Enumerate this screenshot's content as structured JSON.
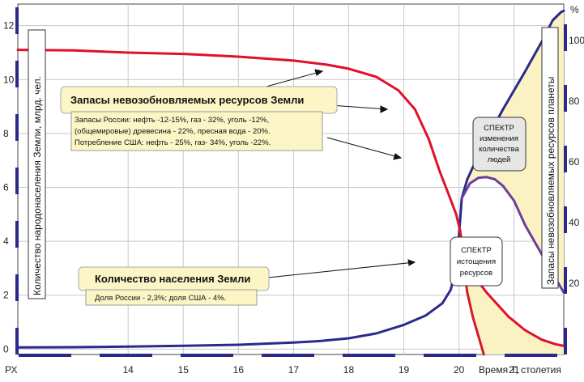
{
  "chart_data": {
    "type": "line",
    "x_axis": {
      "title": "Время Т, столетия",
      "origin_label": "РХ",
      "ticks": [
        14,
        15,
        16,
        17,
        18,
        19,
        20,
        21
      ],
      "range": [
        12.0,
        21.9
      ]
    },
    "y_left": {
      "title": "Количество народонаселения Земли, млрд. чел.",
      "ticks": [
        0,
        2,
        4,
        6,
        8,
        10,
        12
      ],
      "range": [
        -0.2,
        12.8
      ]
    },
    "y_right": {
      "title": "Запасы невозобновляемых ресурсов планеты",
      "unit": "%",
      "ticks": [
        20,
        40,
        60,
        80,
        100
      ],
      "range": [
        -3.5,
        112
      ]
    },
    "series": [
      {
        "name": "Количество населения Земли",
        "axis": "left",
        "color": "#2b2a8c",
        "points": [
          [
            12.0,
            0.06
          ],
          [
            13.0,
            0.07
          ],
          [
            14.0,
            0.09
          ],
          [
            15.0,
            0.12
          ],
          [
            16.0,
            0.16
          ],
          [
            17.0,
            0.24
          ],
          [
            17.5,
            0.3
          ],
          [
            18.0,
            0.4
          ],
          [
            18.5,
            0.58
          ],
          [
            19.0,
            0.9
          ],
          [
            19.4,
            1.25
          ],
          [
            19.7,
            1.7
          ],
          [
            19.85,
            2.2
          ],
          [
            19.95,
            3.0
          ],
          [
            20.0,
            4.2
          ],
          [
            20.05,
            5.6
          ],
          [
            20.15,
            6.3
          ],
          [
            20.4,
            7.4
          ],
          [
            20.8,
            8.9
          ],
          [
            21.2,
            10.3
          ],
          [
            21.5,
            11.4
          ],
          [
            21.7,
            12.2
          ],
          [
            21.85,
            12.5
          ],
          [
            21.9,
            12.55
          ]
        ]
      },
      {
        "name": "Запасы невозобновляемых ресурсов Земли",
        "axis": "left",
        "color": "#e0102a",
        "points": [
          [
            12.0,
            11.1
          ],
          [
            13.0,
            11.08
          ],
          [
            14.0,
            11.0
          ],
          [
            15.0,
            10.95
          ],
          [
            16.0,
            10.85
          ],
          [
            17.0,
            10.7
          ],
          [
            17.6,
            10.55
          ],
          [
            18.0,
            10.4
          ],
          [
            18.5,
            10.1
          ],
          [
            18.9,
            9.6
          ],
          [
            19.2,
            8.9
          ],
          [
            19.45,
            7.8
          ],
          [
            19.65,
            6.6
          ],
          [
            19.82,
            5.7
          ],
          [
            19.95,
            5.0
          ],
          [
            20.02,
            4.4
          ],
          [
            20.1,
            3.3
          ],
          [
            20.2,
            2.9
          ],
          [
            20.5,
            2.1
          ],
          [
            20.9,
            1.2
          ],
          [
            21.2,
            0.7
          ],
          [
            21.5,
            0.35
          ],
          [
            21.75,
            0.18
          ],
          [
            21.9,
            0.12
          ]
        ]
      },
      {
        "name": "СПЕКТР изменения количества людей (нижняя ветвь)",
        "axis": "left",
        "color": "#6a3f9e",
        "points": [
          [
            20.05,
            5.6
          ],
          [
            20.2,
            6.15
          ],
          [
            20.35,
            6.35
          ],
          [
            20.5,
            6.38
          ],
          [
            20.65,
            6.3
          ],
          [
            20.8,
            6.05
          ],
          [
            21.0,
            5.5
          ],
          [
            21.2,
            4.6
          ],
          [
            21.45,
            3.7
          ],
          [
            21.7,
            2.8
          ],
          [
            21.9,
            2.1
          ]
        ]
      },
      {
        "name": "СПЕКТР истощения ресурсов (нижняя ветвь)",
        "axis": "left",
        "color": "#d41a2a",
        "points": [
          [
            20.02,
            4.4
          ],
          [
            20.08,
            3.2
          ],
          [
            20.15,
            2.1
          ],
          [
            20.25,
            1.2
          ],
          [
            20.35,
            0.5
          ],
          [
            20.45,
            -0.2
          ]
        ]
      }
    ],
    "spectra": [
      {
        "label": "СПЕКТР изменения количества людей",
        "upper": "Количество населения Земли",
        "lower": "СПЕКТР изменения количества людей (нижняя ветвь)",
        "color": "#fbf2c4"
      },
      {
        "label": "СПЕКТР истощения ресурсов",
        "upper": "Запасы невозобновляемых ресурсов Земли",
        "lower": "СПЕКТР истощения ресурсов (нижняя ветвь)",
        "color": "#fbf2c4"
      }
    ],
    "annotations": {
      "resources_title": "Запасы невозобновляемых ресурсов Земли",
      "resources_details": [
        "Запасы России:   нефть -12-15%, газ - 32%, уголь -12%,",
        "(общемировые)   древесина - 22%, пресная вода - 20%.",
        "Потребление США:   нефть - 25%, газ- 34%, уголь -22%."
      ],
      "population_title": "Количество населения Земли",
      "population_details": "Доля России - 2,3%;  доля США - 4%.",
      "spectrum_people": [
        "СПЕКТР",
        "изменения",
        "количества",
        "людей"
      ],
      "spectrum_resources": [
        "СПЕКТР",
        "истощения",
        "ресурсов"
      ]
    },
    "grid": true,
    "legend": "none"
  }
}
